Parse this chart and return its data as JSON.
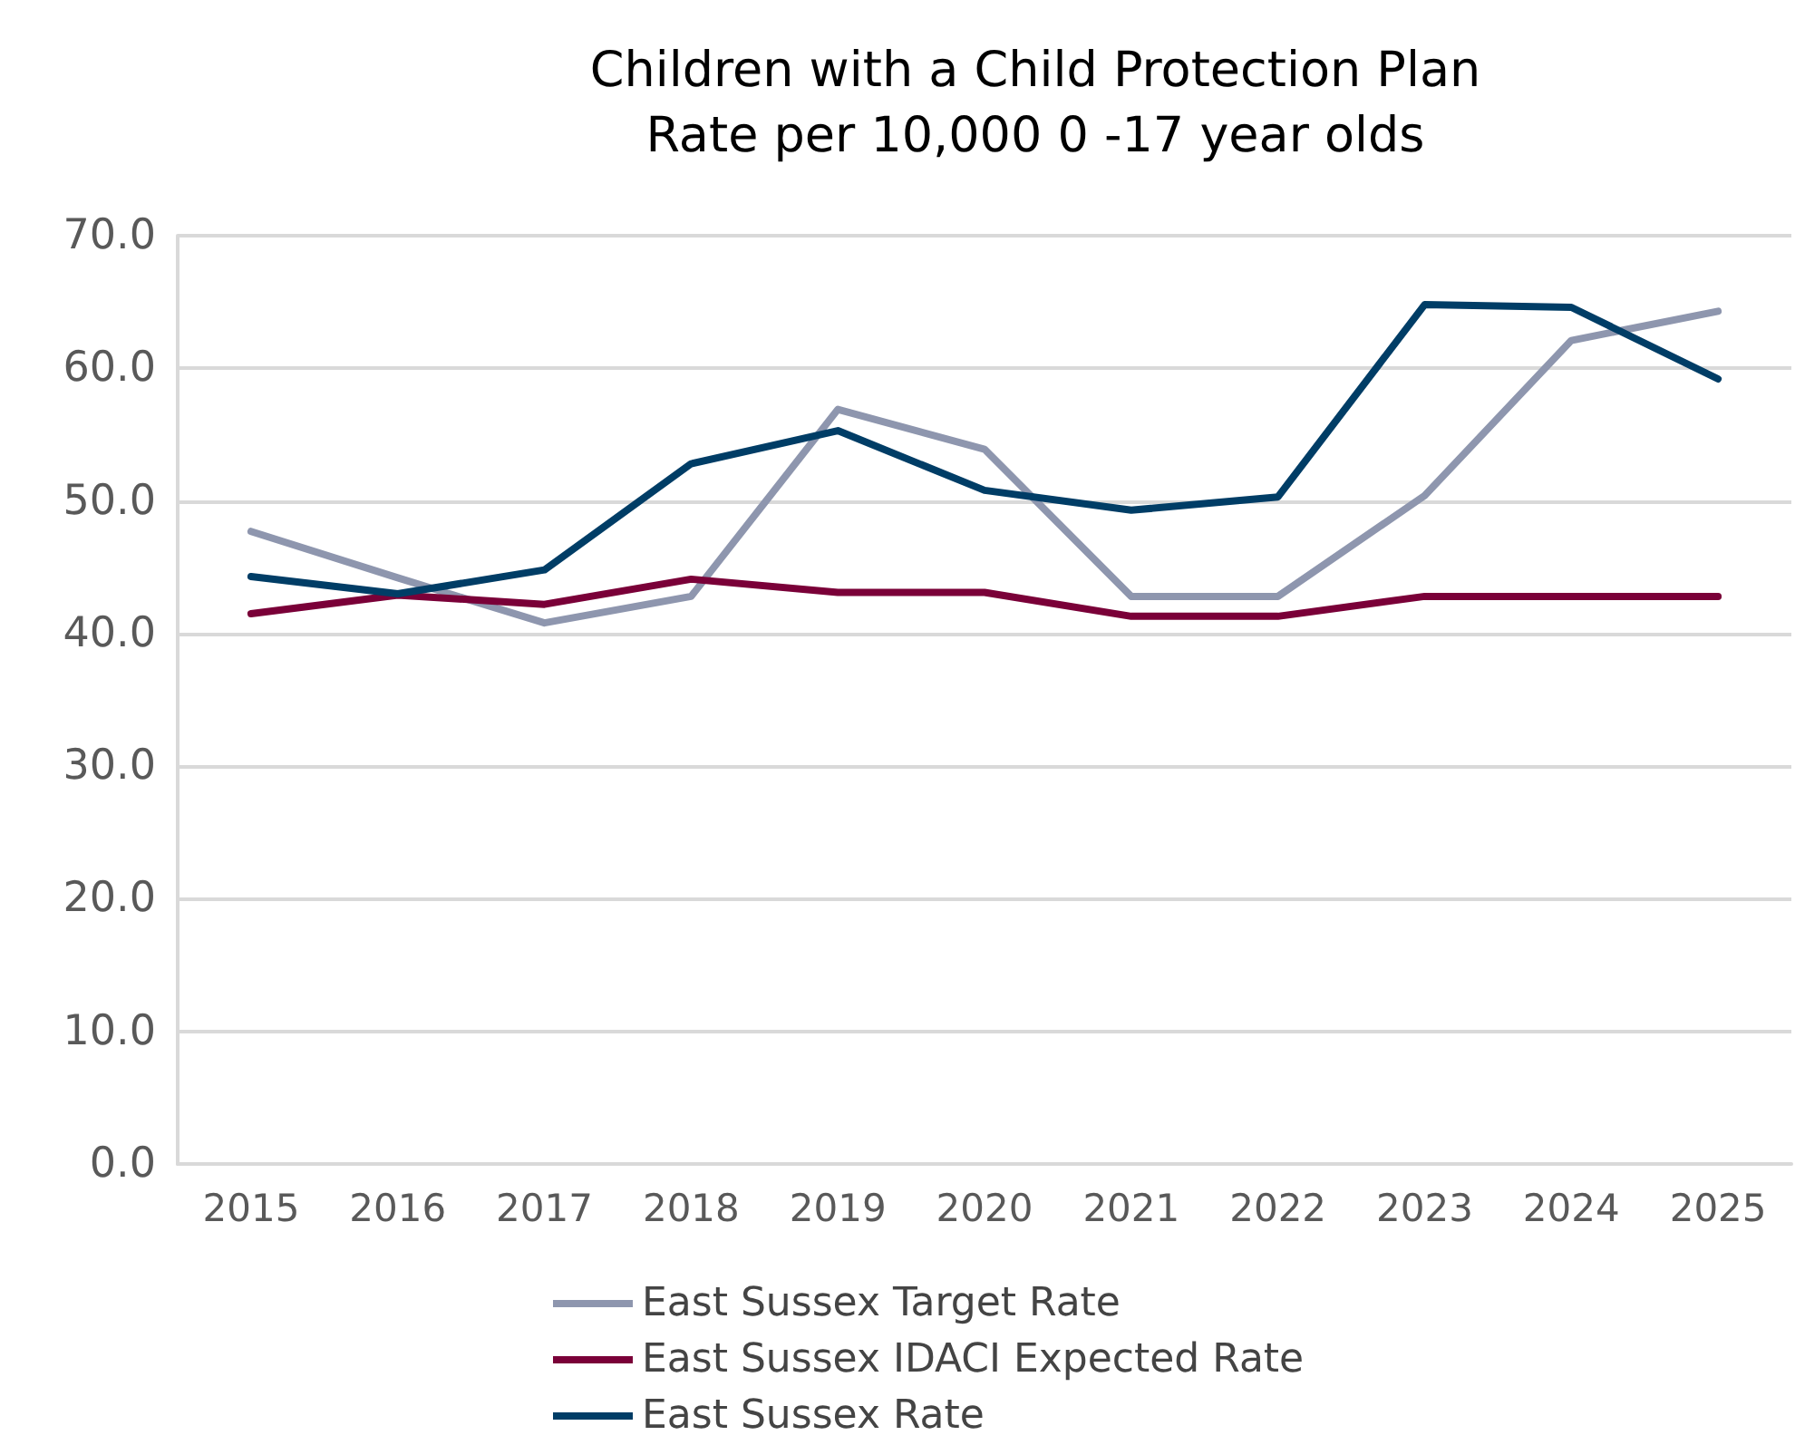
{
  "chart_data": {
    "type": "line",
    "title": "Children with a Child Protection Plan\nRate per 10,000 0 -17 year olds",
    "categories": [
      "2015",
      "2016",
      "2017",
      "2018",
      "2019",
      "2020",
      "2021",
      "2022",
      "2023",
      "2024",
      "2025"
    ],
    "series": [
      {
        "name": "East Sussex Target Rate",
        "color": "#8e96ae",
        "values": [
          47.7,
          44.2,
          40.8,
          42.8,
          56.9,
          53.9,
          42.8,
          42.8,
          50.4,
          62.1,
          64.3
        ]
      },
      {
        "name": "East Sussex IDACI Expected Rate",
        "color": "#7a0038",
        "values": [
          41.5,
          42.9,
          42.2,
          44.1,
          43.1,
          43.1,
          41.3,
          41.3,
          42.8,
          42.8,
          42.8
        ]
      },
      {
        "name": "East Sussex Rate",
        "color": "#003d66",
        "values": [
          44.3,
          43.0,
          44.8,
          52.8,
          55.3,
          50.8,
          49.3,
          50.3,
          64.8,
          64.6,
          59.2
        ]
      }
    ],
    "ylim": [
      0,
      70
    ],
    "yticks": [
      {
        "value": 0,
        "label": "0.0"
      },
      {
        "value": 10,
        "label": "10.0"
      },
      {
        "value": 20,
        "label": "20.0"
      },
      {
        "value": 30,
        "label": "30.0"
      },
      {
        "value": 40,
        "label": "40.0"
      },
      {
        "value": 50,
        "label": "50.0"
      },
      {
        "value": 60,
        "label": "60.0"
      },
      {
        "value": 70,
        "label": "70.0"
      }
    ],
    "grid": "y",
    "legend": "bottom",
    "marker": "none",
    "line_style": "solid"
  }
}
